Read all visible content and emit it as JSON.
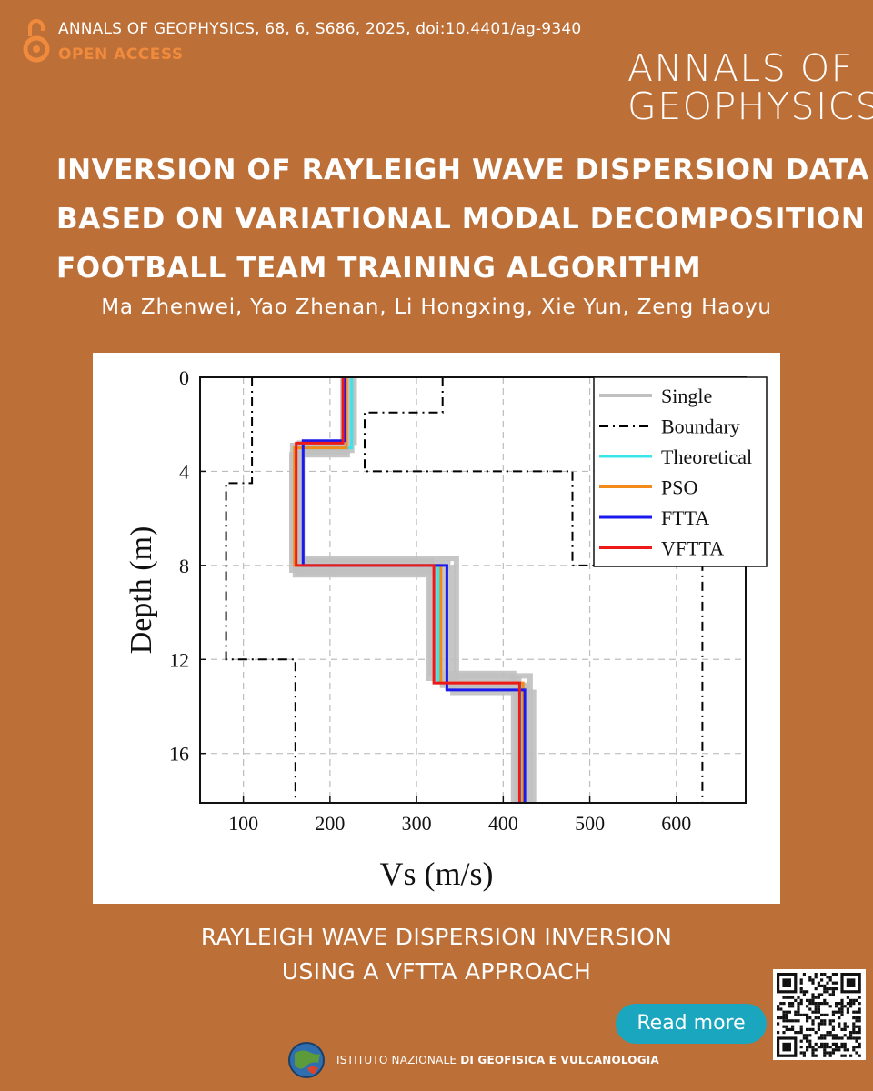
{
  "header": {
    "citation": "ANNALS OF GEOPHYSICS, 68, 6, S686, 2025, doi:10.4401/ag-9340",
    "open_access": "OPEN ACCESS",
    "journal_logo_line1": "ANNALS OF",
    "journal_logo_line2": "GEOPHYSICS"
  },
  "article": {
    "title_line1": "INVERSION OF RAYLEIGH WAVE DISPERSION DATA",
    "title_line2": "BASED ON VARIATIONAL MODAL DECOMPOSITION",
    "title_line3": "FOOTBALL TEAM TRAINING ALGORITHM",
    "authors": "Ma Zhenwei, Yao Zhenan, Li Hongxing, Xie Yun, Zeng Haoyu"
  },
  "footer": {
    "subtitle_line1": "RAYLEIGH WAVE DISPERSION INVERSION",
    "subtitle_line2": "USING A VFTTA APPROACH",
    "read_more": "Read more",
    "institute_prefix": "ISTITUTO NAZIONALE ",
    "institute_suffix": "DI GEOFISICA E VULCANOLOGIA"
  },
  "colors": {
    "background": "#bd6f38",
    "open_access": "#f08a3c",
    "read_more_button": "#1aa6bf"
  },
  "chart_data": {
    "type": "line",
    "xlabel": "Vs (m/s)",
    "ylabel": "Depth (m)",
    "xlim": [
      50,
      680
    ],
    "ylim": [
      18.1,
      0
    ],
    "y_inverted": true,
    "xticks": [
      100,
      200,
      300,
      400,
      500,
      600
    ],
    "yticks": [
      0,
      4,
      8,
      12,
      16
    ],
    "grid": true,
    "legend_position": "top-right",
    "series": [
      {
        "name": "Single",
        "color": "#c0c0c0",
        "style": "solid",
        "profiles": [
          [
            [
              218,
              0
            ],
            [
              218,
              3.2
            ],
            [
              163,
              3.2
            ],
            [
              163,
              8.3
            ],
            [
              330,
              8.3
            ],
            [
              330,
              13.1
            ],
            [
              428,
              13.1
            ],
            [
              428,
              18.1
            ]
          ],
          [
            [
              222,
              0
            ],
            [
              222,
              2.9
            ],
            [
              157,
              2.9
            ],
            [
              157,
              7.8
            ],
            [
              317,
              7.8
            ],
            [
              317,
              12.6
            ],
            [
              412,
              12.6
            ],
            [
              412,
              18.1
            ]
          ],
          [
            [
              225,
              0
            ],
            [
              225,
              3.1
            ],
            [
              168,
              3.1
            ],
            [
              168,
              8.1
            ],
            [
              342,
              8.1
            ],
            [
              342,
              13.4
            ],
            [
              435,
              13.4
            ],
            [
              435,
              18.1
            ]
          ],
          [
            [
              215,
              0
            ],
            [
              215,
              3.0
            ],
            [
              160,
              3.0
            ],
            [
              160,
              8.4
            ],
            [
              314,
              8.4
            ],
            [
              314,
              12.8
            ],
            [
              418,
              12.8
            ],
            [
              418,
              18.1
            ]
          ],
          [
            [
              228,
              0
            ],
            [
              228,
              2.8
            ],
            [
              165,
              2.8
            ],
            [
              165,
              7.9
            ],
            [
              336,
              7.9
            ],
            [
              336,
              13.2
            ],
            [
              424,
              13.2
            ],
            [
              424,
              18.1
            ]
          ],
          [
            [
              220,
              0
            ],
            [
              220,
              3.3
            ],
            [
              156,
              3.3
            ],
            [
              156,
              8.2
            ],
            [
              324,
              8.2
            ],
            [
              324,
              12.7
            ],
            [
              431,
              12.7
            ],
            [
              431,
              18.1
            ]
          ],
          [
            [
              216,
              0
            ],
            [
              216,
              2.9
            ],
            [
              162,
              2.9
            ],
            [
              162,
              7.7
            ],
            [
              346,
              7.7
            ],
            [
              346,
              13.0
            ],
            [
              415,
              13.0
            ],
            [
              415,
              18.1
            ]
          ]
        ]
      },
      {
        "name": "Boundary",
        "color": "#000000",
        "style": "dashdot",
        "profiles": [
          [
            [
              110,
              0
            ],
            [
              110,
              4.5
            ],
            [
              80,
              4.5
            ],
            [
              80,
              12.0
            ],
            [
              160,
              12.0
            ],
            [
              160,
              18.1
            ]
          ],
          [
            [
              330,
              0
            ],
            [
              330,
              1.5
            ],
            [
              240,
              1.5
            ],
            [
              240,
              4.0
            ],
            [
              480,
              4.0
            ],
            [
              480,
              8.0
            ],
            [
              630,
              8.0
            ],
            [
              630,
              18.1
            ]
          ]
        ]
      },
      {
        "name": "Theoretical",
        "color": "#38e6ea",
        "style": "solid",
        "profiles": [
          [
            [
              225,
              0
            ],
            [
              225,
              3.0
            ],
            [
              160,
              3.0
            ],
            [
              160,
              8.0
            ],
            [
              325,
              8.0
            ],
            [
              325,
              13.0
            ],
            [
              420,
              13.0
            ],
            [
              420,
              18.1
            ]
          ]
        ]
      },
      {
        "name": "PSO",
        "color": "#f28a1c",
        "style": "solid",
        "profiles": [
          [
            [
              219,
              0
            ],
            [
              219,
              3.0
            ],
            [
              159,
              3.0
            ],
            [
              159,
              8.0
            ],
            [
              328,
              8.0
            ],
            [
              328,
              13.0
            ],
            [
              423,
              13.0
            ],
            [
              423,
              18.1
            ]
          ]
        ]
      },
      {
        "name": "FTTA",
        "color": "#1a1aee",
        "style": "solid",
        "profiles": [
          [
            [
              217,
              0
            ],
            [
              217,
              2.7
            ],
            [
              169,
              2.7
            ],
            [
              169,
              8.0
            ],
            [
              335,
              8.0
            ],
            [
              335,
              13.3
            ],
            [
              425,
              13.3
            ],
            [
              425,
              18.1
            ]
          ]
        ]
      },
      {
        "name": "VFTTA",
        "color": "#ee1a1a",
        "style": "solid",
        "profiles": [
          [
            [
              215,
              0
            ],
            [
              215,
              2.8
            ],
            [
              161,
              2.8
            ],
            [
              161,
              8.0
            ],
            [
              320,
              8.0
            ],
            [
              320,
              13.0
            ],
            [
              419,
              13.0
            ],
            [
              419,
              18.1
            ]
          ]
        ]
      }
    ]
  }
}
